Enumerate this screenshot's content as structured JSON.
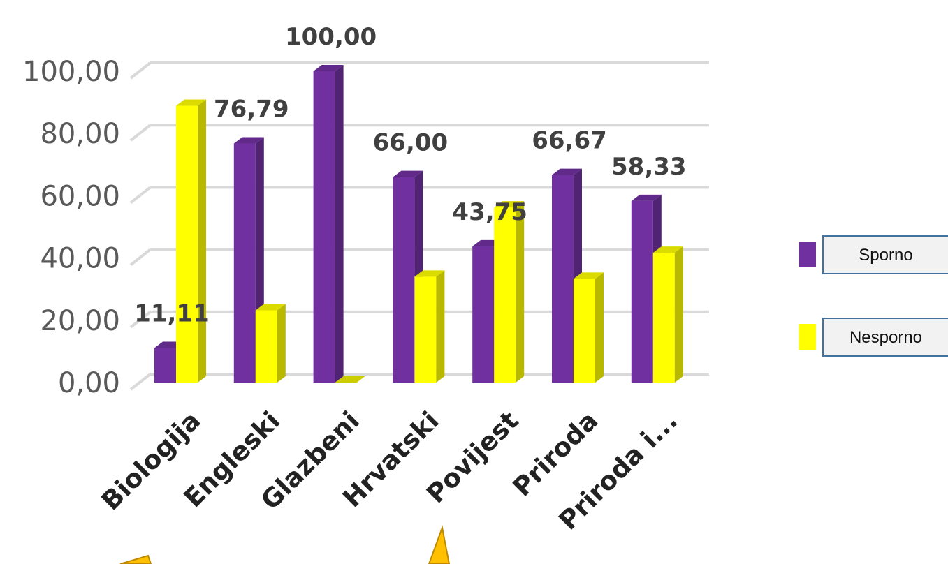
{
  "chart_data": {
    "type": "bar",
    "categories": [
      "Biologija",
      "Engleski",
      "Glazbeni",
      "Hrvatski",
      "Povijest",
      "Priroda",
      "Priroda i..."
    ],
    "series": [
      {
        "name": "Sporno",
        "color": "#7030A0",
        "values": [
          11.11,
          76.79,
          100.0,
          66.0,
          43.75,
          66.67,
          58.33
        ]
      },
      {
        "name": "Nesporno",
        "color": "#FFFF00",
        "values": [
          88.89,
          23.21,
          0.0,
          34.0,
          56.25,
          33.33,
          41.67
        ]
      }
    ],
    "data_labels": [
      "11,11",
      "76,79",
      "100,00",
      "66,00",
      "43,75",
      "66,67",
      "58,33"
    ],
    "y_tick_labels": [
      "0,00",
      "20,00",
      "40,00",
      "60,00",
      "80,00",
      "100,00"
    ],
    "ylim": [
      0,
      100
    ],
    "grid": true,
    "three_d": true,
    "legend_position": "right",
    "title": "",
    "xlabel": "",
    "ylabel": ""
  },
  "callouts": {
    "color": "#FFC000",
    "count": 2
  }
}
